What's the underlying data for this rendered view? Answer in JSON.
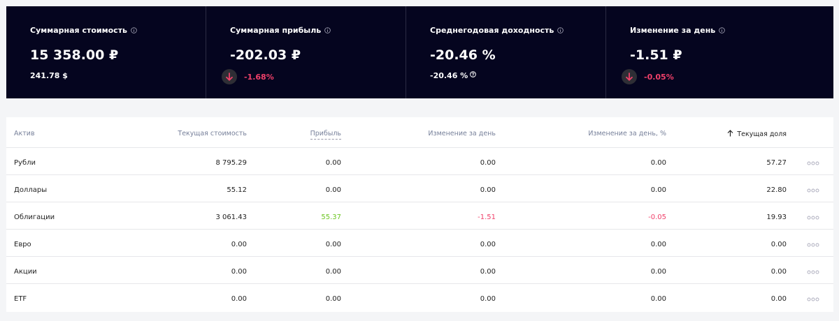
{
  "summary": [
    {
      "title": "Суммарная стоимость",
      "value": "15 358.00 ₽",
      "sub": "241.78 $"
    },
    {
      "title": "Суммарная прибыль",
      "value": "-202.03 ₽",
      "change": "-1.68%"
    },
    {
      "title": "Среднегодовая доходность",
      "value": "-20.46 %",
      "sub": "-20.46 %"
    },
    {
      "title": "Изменение за день",
      "value": "-1.51 ₽",
      "change": "-0.05%"
    }
  ],
  "table": {
    "columns": [
      "Актив",
      "Текущая стоимость",
      "Прибыль",
      "Изменение за день",
      "Изменение за день, %",
      "Текущая доля"
    ],
    "rows": [
      [
        "Рубли",
        "8 795.29",
        "0.00",
        "0.00",
        "0.00",
        "57.27"
      ],
      [
        "Доллары",
        "55.12",
        "0.00",
        "0.00",
        "0.00",
        "22.80"
      ],
      [
        "Облигации",
        "3 061.43",
        "55.37",
        "-1.51",
        "-0.05",
        "19.93"
      ],
      [
        "Евро",
        "0.00",
        "0.00",
        "0.00",
        "0.00",
        "0.00"
      ],
      [
        "Акции",
        "0.00",
        "0.00",
        "0.00",
        "0.00",
        "0.00"
      ],
      [
        "ETF",
        "0.00",
        "0.00",
        "0.00",
        "0.00",
        "0.00"
      ]
    ]
  }
}
